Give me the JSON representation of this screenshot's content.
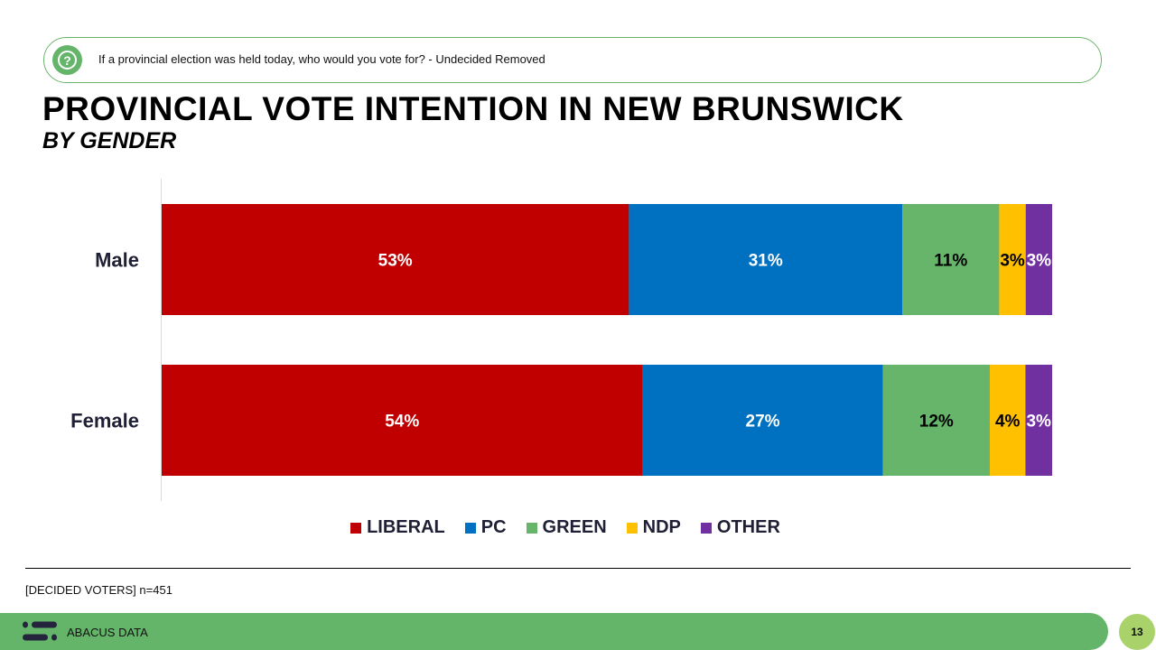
{
  "question": "If a provincial election was held today, who would you vote for? - Undecided Removed",
  "title": "PROVINCIAL VOTE INTENTION IN NEW BRUNSWICK",
  "subtitle": "BY GENDER",
  "note": "[DECIDED VOTERS] n=451",
  "brand": "ABACUS DATA",
  "page_number": "13",
  "chart_data": {
    "type": "bar",
    "orientation": "horizontal",
    "stacked": true,
    "title": "PROVINCIAL VOTE INTENTION IN NEW BRUNSWICK",
    "subtitle": "BY GENDER",
    "categories": [
      "Male",
      "Female"
    ],
    "series": [
      {
        "name": "LIBERAL",
        "color": "#c00000",
        "label_color": "#ffffff",
        "values": [
          53,
          54
        ]
      },
      {
        "name": "PC",
        "color": "#0070c0",
        "label_color": "#ffffff",
        "values": [
          31,
          27
        ]
      },
      {
        "name": "GREEN",
        "color": "#66b56a",
        "label_color": "#000000",
        "values": [
          11,
          12
        ]
      },
      {
        "name": "NDP",
        "color": "#ffc000",
        "label_color": "#000000",
        "values": [
          3,
          4
        ]
      },
      {
        "name": "OTHER",
        "color": "#7030a0",
        "label_color": "#ffffff",
        "values": [
          3,
          3
        ]
      }
    ],
    "value_suffix": "%",
    "legend": "bottom",
    "grid": false
  }
}
